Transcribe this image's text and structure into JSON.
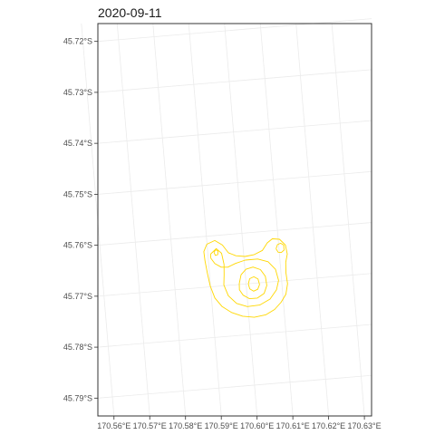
{
  "chart_data": {
    "type": "contour",
    "title": "2020-09-11",
    "xlabel": "",
    "ylabel": "",
    "x_ticks": [
      170.56,
      170.57,
      170.58,
      170.59,
      170.6,
      170.61,
      170.62,
      170.63
    ],
    "x_tick_labels": [
      "170.56°E",
      "170.57°E",
      "170.58°E",
      "170.59°E",
      "170.60°E",
      "170.61°E",
      "170.62°E",
      "170.63°E"
    ],
    "y_ticks": [
      -45.72,
      -45.73,
      -45.74,
      -45.75,
      -45.76,
      -45.77,
      -45.78,
      -45.79
    ],
    "y_tick_labels": [
      "45.72°S",
      "45.73°S",
      "45.74°S",
      "45.75°S",
      "45.76°S",
      "45.77°S",
      "45.78°S",
      "45.79°S"
    ],
    "xlim": [
      170.5555,
      170.632
    ],
    "ylim": [
      -45.7935,
      -45.7165
    ],
    "grid": true,
    "line_color": "#ffd700",
    "contours": [
      {
        "level": "outer",
        "points": [
          [
            170.5897,
            -45.7618
          ],
          [
            170.592,
            -45.7612
          ],
          [
            170.594,
            -45.7622
          ],
          [
            170.5955,
            -45.7638
          ],
          [
            170.5975,
            -45.7645
          ],
          [
            170.6,
            -45.7648
          ],
          [
            170.6025,
            -45.7646
          ],
          [
            170.605,
            -45.7639
          ],
          [
            170.6065,
            -45.7625
          ],
          [
            170.608,
            -45.7618
          ],
          [
            170.61,
            -45.762
          ],
          [
            170.6115,
            -45.7632
          ],
          [
            170.6118,
            -45.765
          ],
          [
            170.6112,
            -45.7666
          ],
          [
            170.611,
            -45.7686
          ],
          [
            170.6112,
            -45.7708
          ],
          [
            170.6105,
            -45.7728
          ],
          [
            170.609,
            -45.7743
          ],
          [
            170.607,
            -45.7756
          ],
          [
            170.6045,
            -45.7765
          ],
          [
            170.6012,
            -45.7768
          ],
          [
            170.598,
            -45.7764
          ],
          [
            170.595,
            -45.7755
          ],
          [
            170.5925,
            -45.7742
          ],
          [
            170.5907,
            -45.7724
          ],
          [
            170.5897,
            -45.77
          ],
          [
            170.5892,
            -45.7675
          ],
          [
            170.5888,
            -45.765
          ],
          [
            170.5887,
            -45.7632
          ],
          [
            170.5897,
            -45.7618
          ]
        ]
      },
      {
        "level": "middle",
        "points": [
          [
            170.5905,
            -45.7638
          ],
          [
            170.5922,
            -45.7628
          ],
          [
            170.5936,
            -45.7638
          ],
          [
            170.594,
            -45.766
          ],
          [
            170.5938,
            -45.768
          ],
          [
            170.5935,
            -45.77
          ],
          [
            170.5945,
            -45.7722
          ],
          [
            170.5966,
            -45.7738
          ],
          [
            170.5995,
            -45.7746
          ],
          [
            170.603,
            -45.7745
          ],
          [
            170.606,
            -45.7735
          ],
          [
            170.608,
            -45.7718
          ],
          [
            170.6088,
            -45.77
          ],
          [
            170.6082,
            -45.7678
          ],
          [
            170.6063,
            -45.7662
          ],
          [
            170.6035,
            -45.7655
          ],
          [
            170.6,
            -45.7655
          ],
          [
            170.5972,
            -45.766
          ],
          [
            170.595,
            -45.7666
          ],
          [
            170.5932,
            -45.7665
          ],
          [
            170.5915,
            -45.7657
          ],
          [
            170.5905,
            -45.7646
          ],
          [
            170.5905,
            -45.7638
          ]
        ]
      },
      {
        "level": "inner",
        "points": [
          [
            170.5978,
            -45.77
          ],
          [
            170.5985,
            -45.7683
          ],
          [
            170.6,
            -45.7673
          ],
          [
            170.602,
            -45.767
          ],
          [
            170.604,
            -45.7676
          ],
          [
            170.6052,
            -45.769
          ],
          [
            170.6054,
            -45.7708
          ],
          [
            170.6045,
            -45.7723
          ],
          [
            170.6025,
            -45.7731
          ],
          [
            170.6003,
            -45.7731
          ],
          [
            170.5986,
            -45.7723
          ],
          [
            170.5977,
            -45.7712
          ],
          [
            170.5978,
            -45.77
          ]
        ]
      },
      {
        "level": "peak",
        "points": [
          [
            170.6003,
            -45.7702
          ],
          [
            170.6008,
            -45.7692
          ],
          [
            170.602,
            -45.7689
          ],
          [
            170.6031,
            -45.7694
          ],
          [
            170.6034,
            -45.7705
          ],
          [
            170.6028,
            -45.7714
          ],
          [
            170.6016,
            -45.7717
          ],
          [
            170.6006,
            -45.7712
          ],
          [
            170.6003,
            -45.7702
          ]
        ]
      },
      {
        "level": "north-east",
        "points": [
          [
            170.6088,
            -45.7638
          ],
          [
            170.6093,
            -45.763
          ],
          [
            170.6102,
            -45.7628
          ],
          [
            170.611,
            -45.7632
          ],
          [
            170.611,
            -45.7642
          ],
          [
            170.6102,
            -45.7646
          ],
          [
            170.6093,
            -45.7645
          ],
          [
            170.6088,
            -45.7638
          ]
        ]
      },
      {
        "level": "north-west",
        "points": [
          [
            170.5915,
            -45.7635
          ],
          [
            170.592,
            -45.763
          ],
          [
            170.5926,
            -45.7633
          ],
          [
            170.5925,
            -45.764
          ],
          [
            170.5918,
            -45.7641
          ],
          [
            170.5915,
            -45.7635
          ]
        ]
      }
    ]
  }
}
